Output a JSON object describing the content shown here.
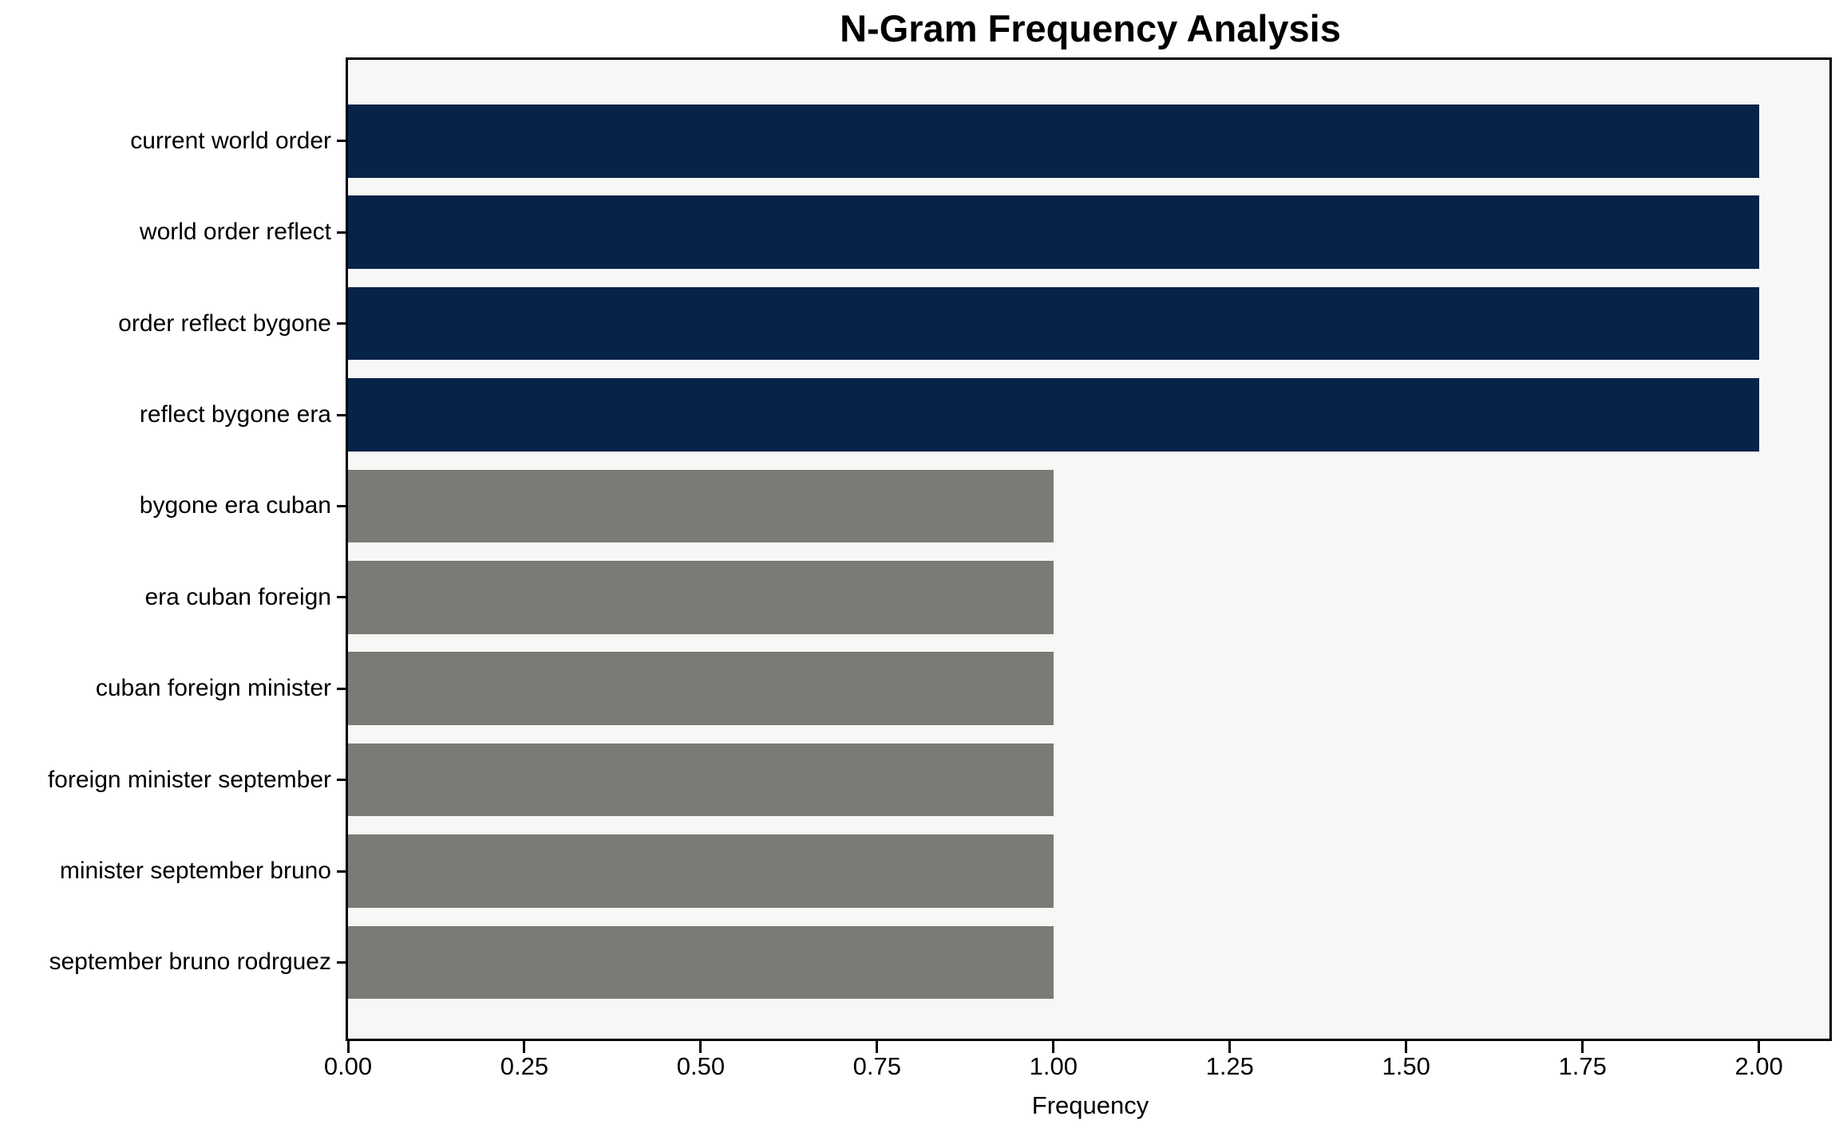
{
  "chart_data": {
    "type": "bar",
    "orientation": "horizontal",
    "title": "N-Gram Frequency Analysis",
    "xlabel": "Frequency",
    "ylabel": "",
    "categories": [
      "current world order",
      "world order reflect",
      "order reflect bygone",
      "reflect bygone era",
      "bygone era cuban",
      "era cuban foreign",
      "cuban foreign minister",
      "foreign minister september",
      "minister september bruno",
      "september bruno rodrguez"
    ],
    "values": [
      2,
      2,
      2,
      2,
      1,
      1,
      1,
      1,
      1,
      1
    ],
    "bar_colors": [
      "#062348",
      "#062348",
      "#062348",
      "#062348",
      "#7b7b76",
      "#7b7b76",
      "#7b7b76",
      "#7b7b76",
      "#7b7b76",
      "#7b7b76"
    ],
    "xlim": [
      0,
      2.1
    ],
    "xtick_labels": [
      "0.00",
      "0.25",
      "0.50",
      "0.75",
      "1.00",
      "1.25",
      "1.50",
      "1.75",
      "2.00"
    ],
    "xtick_values": [
      0,
      0.25,
      0.5,
      0.75,
      1.0,
      1.25,
      1.5,
      1.75,
      2.0
    ],
    "grid": false,
    "legend": null,
    "colors": {
      "high_frequency_bar": "#062348",
      "low_frequency_bar": "#7b7b76",
      "plot_background": "#f7f7f6",
      "figure_background": "#ffffff",
      "spine": "#000000",
      "text": "#000000"
    }
  }
}
